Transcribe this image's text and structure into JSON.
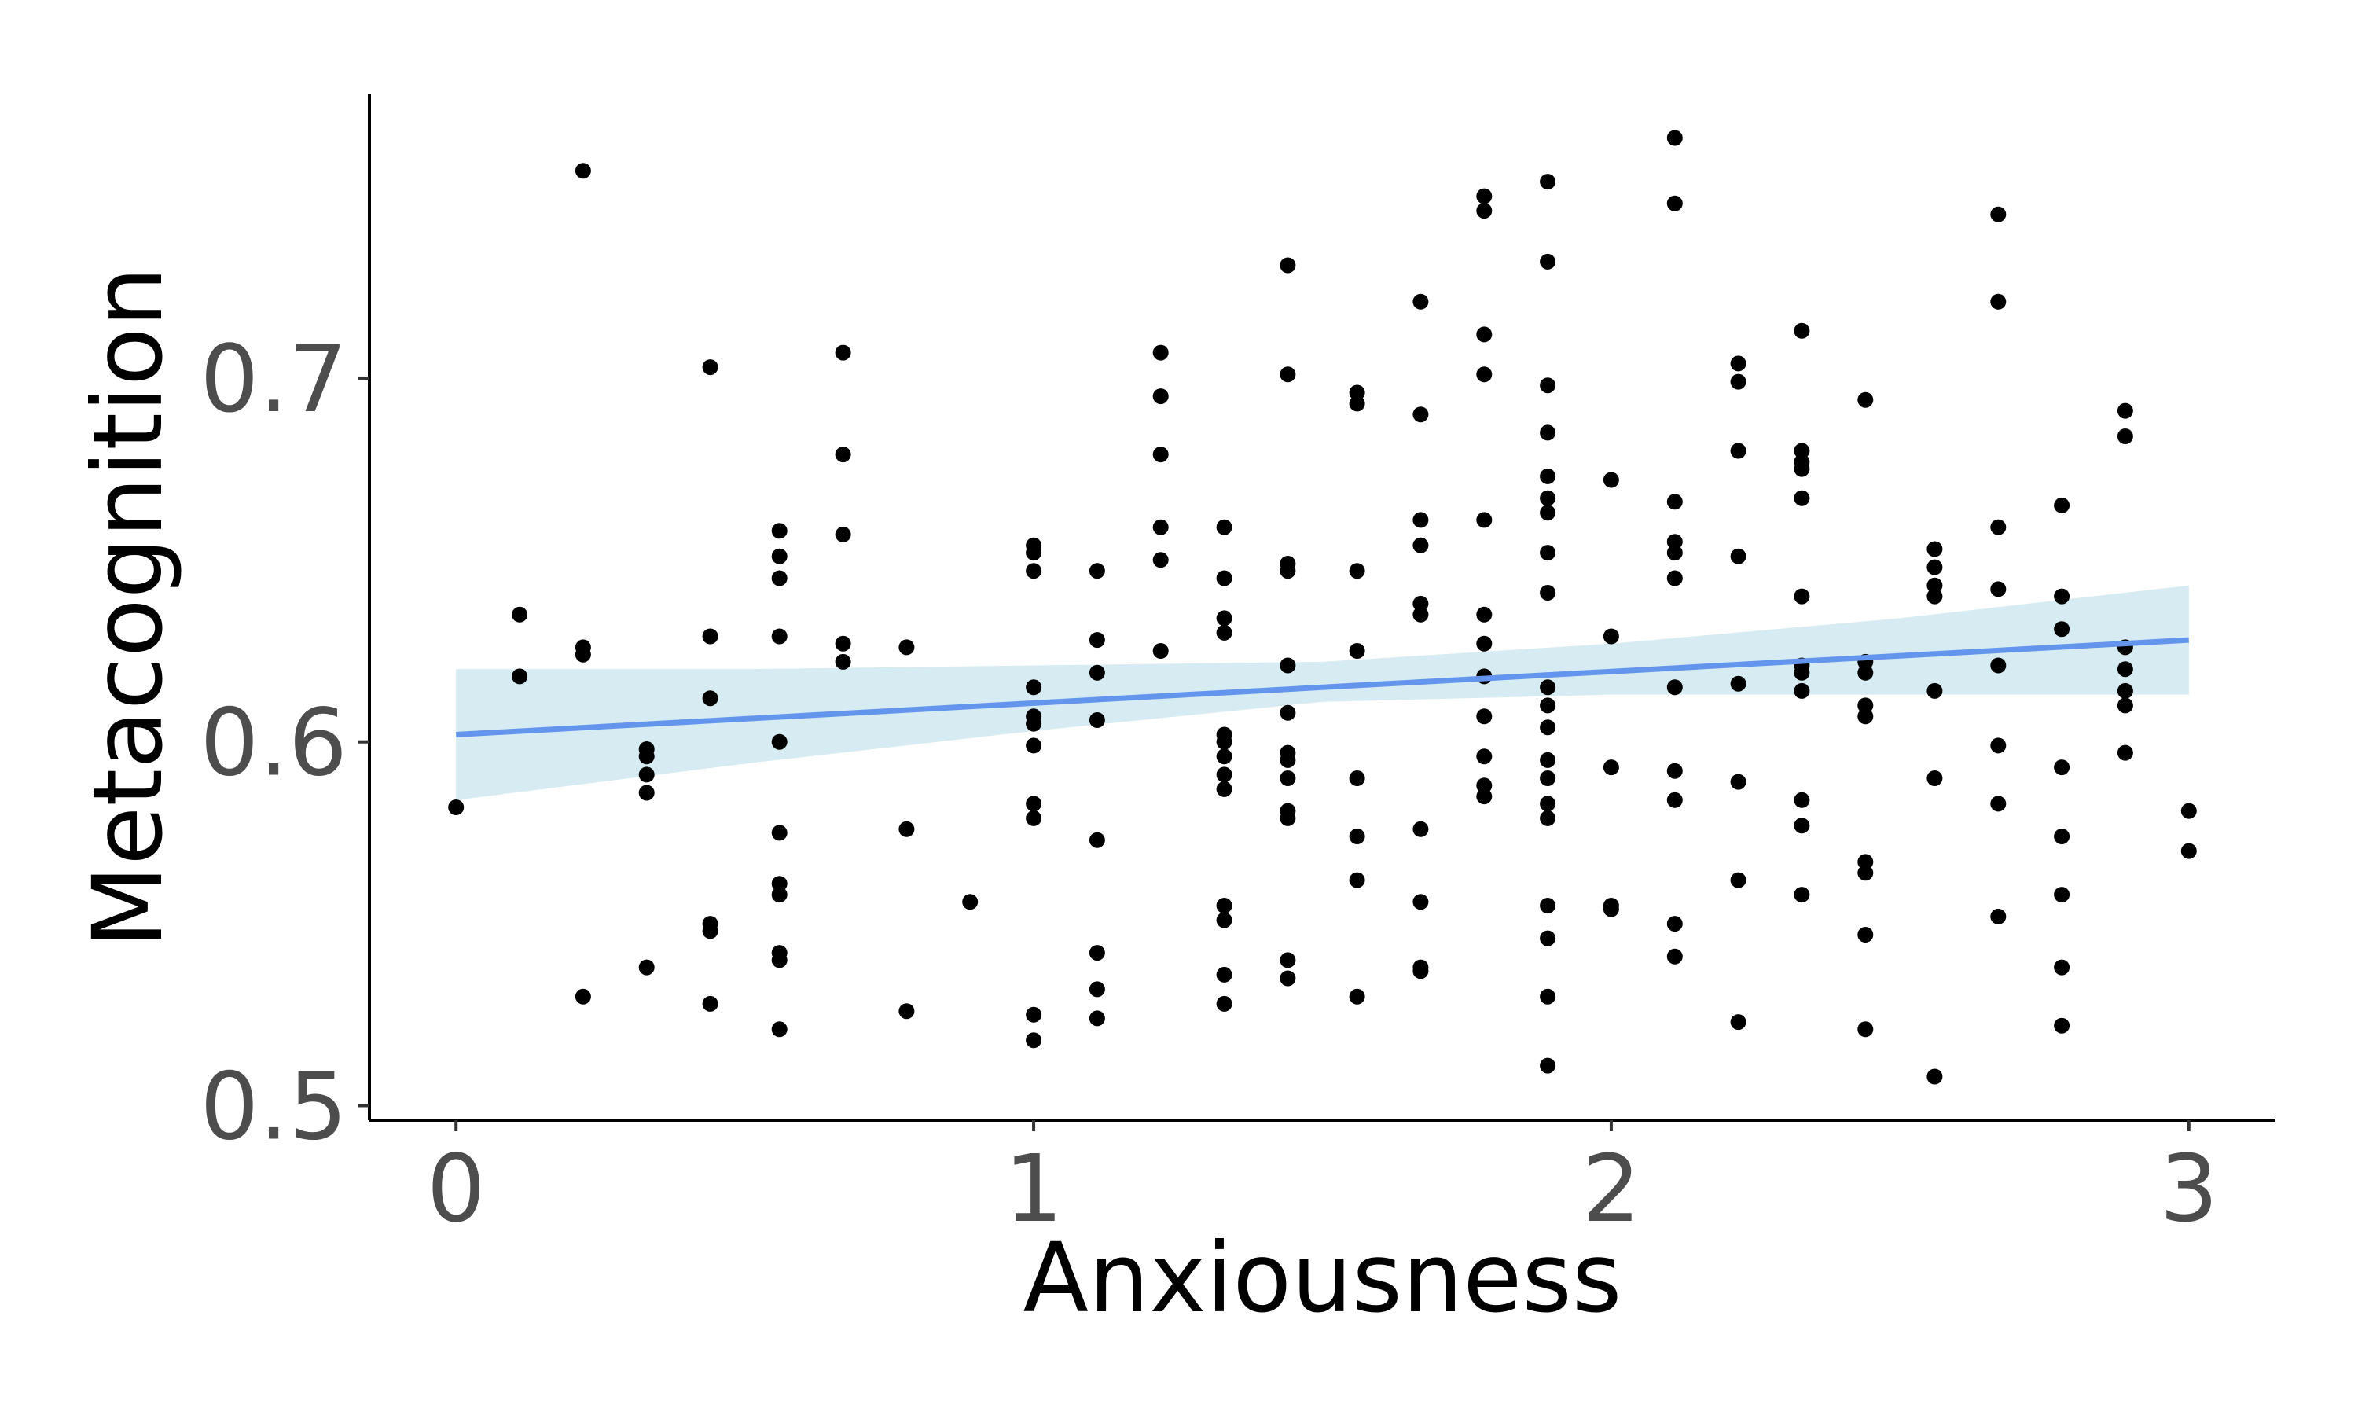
{
  "chart_data": {
    "type": "scatter",
    "xlabel": "Anxiousness",
    "ylabel": "Metacognition",
    "xlim": [
      -0.15,
      3.15
    ],
    "ylim": [
      0.496,
      0.778
    ],
    "x_ticks": [
      {
        "value": 0,
        "label": "0"
      },
      {
        "value": 1,
        "label": "1"
      },
      {
        "value": 2,
        "label": "2"
      },
      {
        "value": 3,
        "label": "3"
      }
    ],
    "y_ticks": [
      {
        "value": 0.5,
        "label": "0.5"
      },
      {
        "value": 0.6,
        "label": "0.6"
      },
      {
        "value": 0.7,
        "label": "0.7"
      }
    ],
    "grid": false,
    "legend": "none",
    "colors": {
      "points": "#000000",
      "trend_line": "#6495ed",
      "confidence_band": "#add8e6",
      "axis": "#000000",
      "tick_labels": "#4d4d4d"
    },
    "trend": {
      "x": [
        0,
        3
      ],
      "y": [
        0.602,
        0.628
      ],
      "ci_x": [
        0,
        0.5,
        1,
        1.5,
        2,
        2.5,
        3
      ],
      "ci_lower": [
        0.584,
        0.594,
        0.603,
        0.611,
        0.613,
        0.613,
        0.613
      ],
      "ci_upper": [
        0.62,
        0.62,
        0.621,
        0.622,
        0.627,
        0.634,
        0.643
      ]
    },
    "points": [
      [
        0.0,
        0.582
      ],
      [
        0.11,
        0.635
      ],
      [
        0.11,
        0.618
      ],
      [
        0.22,
        0.757
      ],
      [
        0.22,
        0.626
      ],
      [
        0.22,
        0.624
      ],
      [
        0.22,
        0.53
      ],
      [
        0.33,
        0.598
      ],
      [
        0.33,
        0.596
      ],
      [
        0.33,
        0.591
      ],
      [
        0.33,
        0.586
      ],
      [
        0.33,
        0.538
      ],
      [
        0.44,
        0.703
      ],
      [
        0.44,
        0.629
      ],
      [
        0.44,
        0.612
      ],
      [
        0.44,
        0.55
      ],
      [
        0.44,
        0.548
      ],
      [
        0.44,
        0.528
      ],
      [
        0.56,
        0.658
      ],
      [
        0.56,
        0.651
      ],
      [
        0.56,
        0.645
      ],
      [
        0.56,
        0.629
      ],
      [
        0.56,
        0.6
      ],
      [
        0.56,
        0.575
      ],
      [
        0.56,
        0.561
      ],
      [
        0.56,
        0.558
      ],
      [
        0.56,
        0.542
      ],
      [
        0.56,
        0.54
      ],
      [
        0.56,
        0.521
      ],
      [
        0.67,
        0.707
      ],
      [
        0.67,
        0.679
      ],
      [
        0.67,
        0.657
      ],
      [
        0.67,
        0.627
      ],
      [
        0.67,
        0.622
      ],
      [
        0.78,
        0.626
      ],
      [
        0.78,
        0.576
      ],
      [
        0.78,
        0.526
      ],
      [
        0.89,
        0.556
      ],
      [
        1.0,
        0.654
      ],
      [
        1.0,
        0.652
      ],
      [
        1.0,
        0.647
      ],
      [
        1.0,
        0.615
      ],
      [
        1.0,
        0.607
      ],
      [
        1.0,
        0.605
      ],
      [
        1.0,
        0.599
      ],
      [
        1.0,
        0.583
      ],
      [
        1.0,
        0.579
      ],
      [
        1.0,
        0.525
      ],
      [
        1.0,
        0.518
      ],
      [
        1.11,
        0.647
      ],
      [
        1.11,
        0.628
      ],
      [
        1.11,
        0.619
      ],
      [
        1.11,
        0.606
      ],
      [
        1.11,
        0.573
      ],
      [
        1.11,
        0.542
      ],
      [
        1.11,
        0.532
      ],
      [
        1.11,
        0.524
      ],
      [
        1.22,
        0.707
      ],
      [
        1.22,
        0.695
      ],
      [
        1.22,
        0.679
      ],
      [
        1.22,
        0.659
      ],
      [
        1.22,
        0.65
      ],
      [
        1.22,
        0.625
      ],
      [
        1.33,
        0.659
      ],
      [
        1.33,
        0.645
      ],
      [
        1.33,
        0.634
      ],
      [
        1.33,
        0.63
      ],
      [
        1.33,
        0.602
      ],
      [
        1.33,
        0.6
      ],
      [
        1.33,
        0.596
      ],
      [
        1.33,
        0.591
      ],
      [
        1.33,
        0.587
      ],
      [
        1.33,
        0.555
      ],
      [
        1.33,
        0.551
      ],
      [
        1.33,
        0.536
      ],
      [
        1.33,
        0.528
      ],
      [
        1.44,
        0.731
      ],
      [
        1.44,
        0.701
      ],
      [
        1.44,
        0.649
      ],
      [
        1.44,
        0.647
      ],
      [
        1.44,
        0.621
      ],
      [
        1.44,
        0.608
      ],
      [
        1.44,
        0.597
      ],
      [
        1.44,
        0.595
      ],
      [
        1.44,
        0.59
      ],
      [
        1.44,
        0.581
      ],
      [
        1.44,
        0.579
      ],
      [
        1.44,
        0.54
      ],
      [
        1.44,
        0.535
      ],
      [
        1.56,
        0.696
      ],
      [
        1.56,
        0.693
      ],
      [
        1.56,
        0.647
      ],
      [
        1.56,
        0.625
      ],
      [
        1.56,
        0.59
      ],
      [
        1.56,
        0.574
      ],
      [
        1.56,
        0.562
      ],
      [
        1.56,
        0.53
      ],
      [
        1.67,
        0.721
      ],
      [
        1.67,
        0.69
      ],
      [
        1.67,
        0.661
      ],
      [
        1.67,
        0.654
      ],
      [
        1.67,
        0.638
      ],
      [
        1.67,
        0.635
      ],
      [
        1.67,
        0.576
      ],
      [
        1.67,
        0.556
      ],
      [
        1.67,
        0.538
      ],
      [
        1.67,
        0.537
      ],
      [
        1.78,
        0.75
      ],
      [
        1.78,
        0.746
      ],
      [
        1.78,
        0.712
      ],
      [
        1.78,
        0.701
      ],
      [
        1.78,
        0.661
      ],
      [
        1.78,
        0.635
      ],
      [
        1.78,
        0.627
      ],
      [
        1.78,
        0.618
      ],
      [
        1.78,
        0.607
      ],
      [
        1.78,
        0.596
      ],
      [
        1.78,
        0.588
      ],
      [
        1.78,
        0.585
      ],
      [
        1.89,
        0.754
      ],
      [
        1.89,
        0.732
      ],
      [
        1.89,
        0.698
      ],
      [
        1.89,
        0.685
      ],
      [
        1.89,
        0.673
      ],
      [
        1.89,
        0.667
      ],
      [
        1.89,
        0.663
      ],
      [
        1.89,
        0.652
      ],
      [
        1.89,
        0.641
      ],
      [
        1.89,
        0.615
      ],
      [
        1.89,
        0.61
      ],
      [
        1.89,
        0.604
      ],
      [
        1.89,
        0.595
      ],
      [
        1.89,
        0.59
      ],
      [
        1.89,
        0.583
      ],
      [
        1.89,
        0.579
      ],
      [
        1.89,
        0.555
      ],
      [
        1.89,
        0.546
      ],
      [
        1.89,
        0.53
      ],
      [
        1.89,
        0.511
      ],
      [
        2.0,
        0.672
      ],
      [
        2.0,
        0.629
      ],
      [
        2.0,
        0.593
      ],
      [
        2.0,
        0.555
      ],
      [
        2.0,
        0.554
      ],
      [
        2.11,
        0.766
      ],
      [
        2.11,
        0.748
      ],
      [
        2.11,
        0.666
      ],
      [
        2.11,
        0.655
      ],
      [
        2.11,
        0.652
      ],
      [
        2.11,
        0.645
      ],
      [
        2.11,
        0.615
      ],
      [
        2.11,
        0.592
      ],
      [
        2.11,
        0.584
      ],
      [
        2.11,
        0.55
      ],
      [
        2.11,
        0.541
      ],
      [
        2.22,
        0.704
      ],
      [
        2.22,
        0.699
      ],
      [
        2.22,
        0.68
      ],
      [
        2.22,
        0.651
      ],
      [
        2.22,
        0.616
      ],
      [
        2.22,
        0.589
      ],
      [
        2.22,
        0.562
      ],
      [
        2.22,
        0.523
      ],
      [
        2.33,
        0.713
      ],
      [
        2.33,
        0.68
      ],
      [
        2.33,
        0.677
      ],
      [
        2.33,
        0.675
      ],
      [
        2.33,
        0.667
      ],
      [
        2.33,
        0.64
      ],
      [
        2.33,
        0.621
      ],
      [
        2.33,
        0.619
      ],
      [
        2.33,
        0.614
      ],
      [
        2.33,
        0.584
      ],
      [
        2.33,
        0.577
      ],
      [
        2.33,
        0.558
      ],
      [
        2.44,
        0.694
      ],
      [
        2.44,
        0.622
      ],
      [
        2.44,
        0.619
      ],
      [
        2.44,
        0.61
      ],
      [
        2.44,
        0.607
      ],
      [
        2.44,
        0.567
      ],
      [
        2.44,
        0.564
      ],
      [
        2.44,
        0.547
      ],
      [
        2.44,
        0.521
      ],
      [
        2.56,
        0.653
      ],
      [
        2.56,
        0.648
      ],
      [
        2.56,
        0.643
      ],
      [
        2.56,
        0.64
      ],
      [
        2.56,
        0.614
      ],
      [
        2.56,
        0.59
      ],
      [
        2.56,
        0.508
      ],
      [
        2.67,
        0.745
      ],
      [
        2.67,
        0.721
      ],
      [
        2.67,
        0.659
      ],
      [
        2.67,
        0.642
      ],
      [
        2.67,
        0.621
      ],
      [
        2.67,
        0.599
      ],
      [
        2.67,
        0.583
      ],
      [
        2.67,
        0.552
      ],
      [
        2.78,
        0.665
      ],
      [
        2.78,
        0.64
      ],
      [
        2.78,
        0.631
      ],
      [
        2.78,
        0.593
      ],
      [
        2.78,
        0.574
      ],
      [
        2.78,
        0.558
      ],
      [
        2.78,
        0.538
      ],
      [
        2.78,
        0.522
      ],
      [
        2.89,
        0.691
      ],
      [
        2.89,
        0.684
      ],
      [
        2.89,
        0.626
      ],
      [
        2.89,
        0.62
      ],
      [
        2.89,
        0.614
      ],
      [
        2.89,
        0.61
      ],
      [
        2.89,
        0.597
      ],
      [
        3.0,
        0.581
      ],
      [
        3.0,
        0.57
      ]
    ]
  }
}
